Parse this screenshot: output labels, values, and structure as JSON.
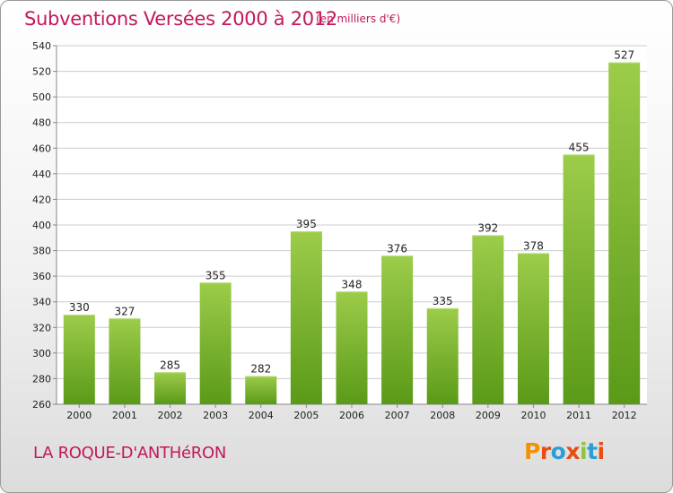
{
  "chart_data": {
    "type": "bar",
    "title": "Subventions Versées 2000 à 2012",
    "subtitle": "(en milliers d'€)",
    "categories": [
      "2000",
      "2001",
      "2002",
      "2003",
      "2004",
      "2005",
      "2006",
      "2007",
      "2008",
      "2009",
      "2010",
      "2011",
      "2012"
    ],
    "values": [
      330,
      327,
      285,
      355,
      282,
      395,
      348,
      376,
      335,
      392,
      378,
      455,
      527
    ],
    "ylim": [
      260,
      540
    ],
    "yticks": [
      260,
      280,
      300,
      320,
      340,
      360,
      380,
      400,
      420,
      440,
      460,
      480,
      500,
      520,
      540
    ],
    "grid": true,
    "bar_color_top": "#9ccc4a",
    "bar_color_bottom": "#5a9a18"
  },
  "footer": {
    "commune": "LA ROQUE-D'ANTHéRON",
    "logo": "Proxiti",
    "logo_colors": [
      "#f39200",
      "#e84e10",
      "#2a9fd6",
      "#e84e10",
      "#8cc63f",
      "#2a9fd6",
      "#e84e10"
    ]
  },
  "colors": {
    "title": "#c2185b",
    "axis": "#888888",
    "grid": "#cccccc"
  }
}
